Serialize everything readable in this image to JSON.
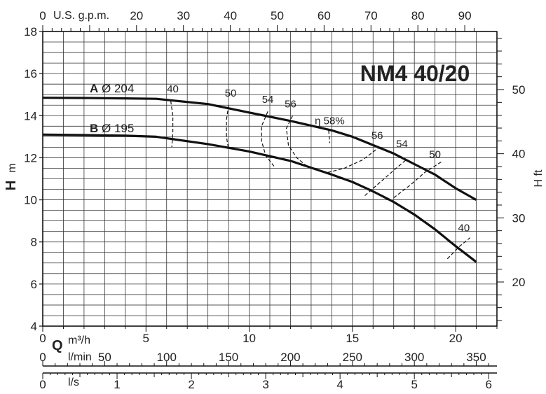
{
  "chart_data": {
    "type": "line",
    "title": "NM4 40/20",
    "ylabel_left": "H",
    "ylabel_left_unit": "m",
    "ylabel_right": "H ft",
    "xlabel_q": "Q",
    "xunit_m3h": "m³/h",
    "xunit_lmin": "l/min",
    "xunit_ls": "l/s",
    "xunit_gpm": "U.S. g.p.m.",
    "xlim_m3h": [
      0,
      22
    ],
    "ylim_m": [
      4,
      18
    ],
    "grid": true,
    "y_ticks_m": [
      "4",
      "6",
      "8",
      "10",
      "12",
      "14",
      "16",
      "18"
    ],
    "y_ticks_ft": [
      "20",
      "30",
      "40",
      "50"
    ],
    "x_ticks_m3h": [
      "0",
      "5",
      "10",
      "15",
      "20"
    ],
    "x_ticks_lmin": [
      "0",
      "50",
      "100",
      "150",
      "200",
      "250",
      "300",
      "350"
    ],
    "x_ticks_ls": [
      "0",
      "1",
      "2",
      "3",
      "4",
      "5",
      "6"
    ],
    "x_ticks_gpm": [
      "0",
      "20",
      "30",
      "40",
      "50",
      "60",
      "70",
      "80",
      "90"
    ],
    "series": [
      {
        "name": "A",
        "diameter": "Ø 204",
        "x": [
          0,
          2,
          4,
          5.5,
          8,
          10,
          12,
          14,
          15,
          16,
          17,
          18,
          19,
          20,
          21
        ],
        "y": [
          14.85,
          14.84,
          14.82,
          14.8,
          14.55,
          14.15,
          13.75,
          13.3,
          13.0,
          12.6,
          12.2,
          11.7,
          11.2,
          10.55,
          10.0
        ]
      },
      {
        "name": "B",
        "diameter": "Ø 195",
        "x": [
          0,
          2,
          4,
          5.5,
          8,
          10,
          12,
          14,
          15,
          16,
          17,
          18,
          19,
          20,
          21
        ],
        "y": [
          13.1,
          13.08,
          13.05,
          13.0,
          12.65,
          12.3,
          11.85,
          11.2,
          10.85,
          10.4,
          9.9,
          9.3,
          8.6,
          7.8,
          7.05
        ]
      }
    ],
    "efficiency_curves": [
      {
        "label": "40",
        "x": [
          6.2,
          6.3,
          6.3,
          6.25
        ],
        "y": [
          14.7,
          14.0,
          13.2,
          12.5
        ],
        "label_x": 6.3,
        "label_y": 15.1
      },
      {
        "label": "40",
        "x": [
          19.6,
          20.2,
          20.7
        ],
        "y": [
          7.2,
          7.8,
          8.2
        ],
        "label_x": 20.4,
        "label_y": 8.5
      },
      {
        "label": "50",
        "x": [
          9.0,
          8.9,
          8.9,
          9.0
        ],
        "y": [
          14.5,
          13.8,
          13.0,
          12.4
        ],
        "label_x": 9.1,
        "label_y": 14.9
      },
      {
        "label": "50",
        "x": [
          17.0,
          17.8,
          18.5,
          19.3
        ],
        "y": [
          10.1,
          10.7,
          11.3,
          11.8
        ],
        "label_x": 19.0,
        "label_y": 12.0
      },
      {
        "label": "54",
        "x": [
          10.9,
          10.6,
          10.6,
          10.8,
          11.2
        ],
        "y": [
          14.2,
          13.5,
          12.8,
          12.1,
          11.6
        ],
        "label_x": 10.9,
        "label_y": 14.6
      },
      {
        "label": "54",
        "x": [
          15.6,
          16.3,
          17.0,
          17.6
        ],
        "y": [
          10.2,
          10.8,
          11.4,
          11.9
        ],
        "label_x": 17.4,
        "label_y": 12.5
      },
      {
        "label": "56",
        "x": [
          12.1,
          11.8,
          11.9,
          12.3,
          12.8
        ],
        "y": [
          14.0,
          13.4,
          12.6,
          12.0,
          11.6
        ],
        "label_x": 12.0,
        "label_y": 14.4
      },
      {
        "label": "56",
        "x": [
          13.8,
          14.6,
          15.5,
          16.3
        ],
        "y": [
          11.3,
          11.5,
          11.9,
          12.5
        ],
        "label_x": 16.2,
        "label_y": 12.9
      },
      {
        "label": "η 58%",
        "x": [
          13.85,
          13.9
        ],
        "y": [
          13.3,
          12.7
        ],
        "label_x": 13.9,
        "label_y": 13.6
      }
    ]
  }
}
